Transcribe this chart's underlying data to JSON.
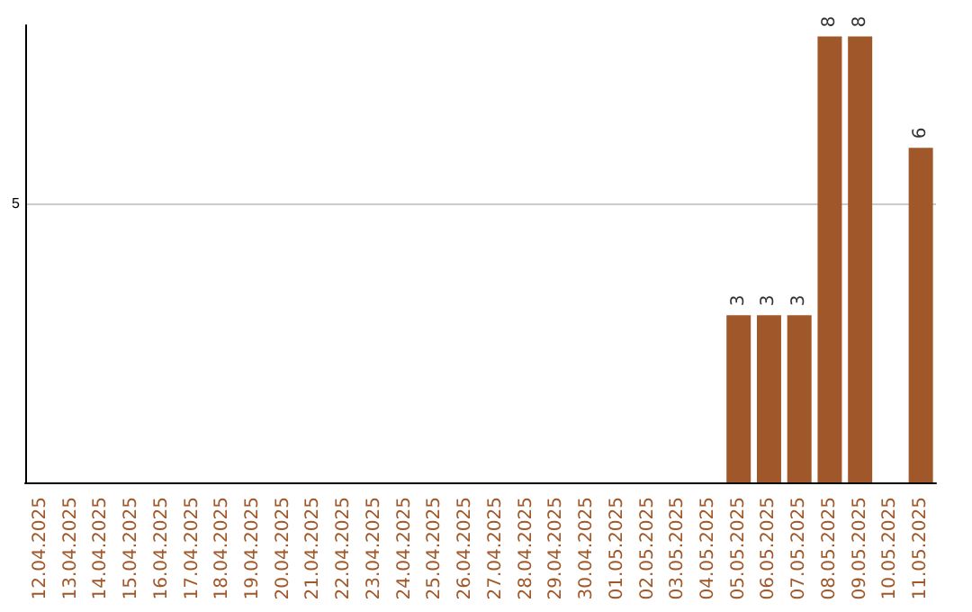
{
  "chart_data": {
    "type": "bar",
    "categories": [
      "12.04.2025",
      "13.04.2025",
      "14.04.2025",
      "15.04.2025",
      "16.04.2025",
      "17.04.2025",
      "18.04.2025",
      "19.04.2025",
      "20.04.2025",
      "21.04.2025",
      "22.04.2025",
      "23.04.2025",
      "24.04.2025",
      "25.04.2025",
      "26.04.2025",
      "27.04.2025",
      "28.04.2025",
      "29.04.2025",
      "30.04.2025",
      "01.05.2025",
      "02.05.2025",
      "03.05.2025",
      "04.05.2025",
      "05.05.2025",
      "06.05.2025",
      "07.05.2025",
      "08.05.2025",
      "09.05.2025",
      "10.05.2025",
      "11.05.2025"
    ],
    "values": [
      null,
      null,
      null,
      null,
      null,
      null,
      null,
      null,
      null,
      null,
      null,
      null,
      null,
      null,
      null,
      null,
      null,
      null,
      null,
      null,
      null,
      null,
      null,
      3,
      3,
      3,
      8,
      8,
      null,
      6
    ],
    "data_labels": true,
    "color": "#a0582a",
    "ylim": [
      0,
      8.2
    ],
    "yticks": [
      5
    ],
    "grid": "y"
  }
}
